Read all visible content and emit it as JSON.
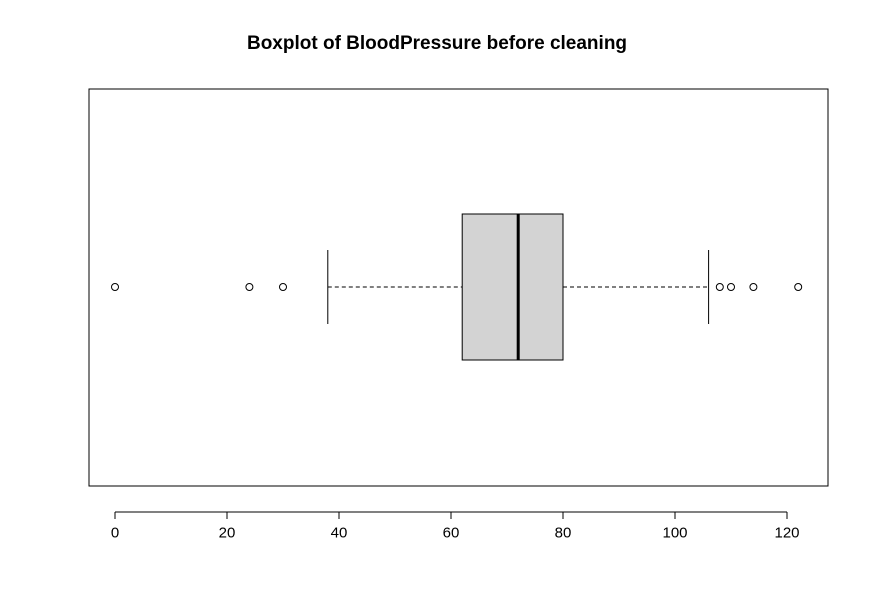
{
  "chart_data": {
    "type": "boxplot",
    "title": "Boxplot of BloodPressure before cleaning",
    "xlabel": "",
    "ylabel": "",
    "orientation": "horizontal",
    "xlim": [
      -5,
      127
    ],
    "ticks": [
      0,
      20,
      40,
      60,
      80,
      100,
      120
    ],
    "tick_labels": [
      "0",
      "20",
      "40",
      "60",
      "80",
      "100",
      "120"
    ],
    "box": {
      "whisker_low": 38,
      "q1": 62,
      "median": 72,
      "q3": 80,
      "whisker_high": 106
    },
    "outliers": [
      0,
      24,
      30,
      108,
      110,
      114,
      122
    ],
    "box_fill": "#d3d3d3",
    "line_color": "#000000"
  }
}
